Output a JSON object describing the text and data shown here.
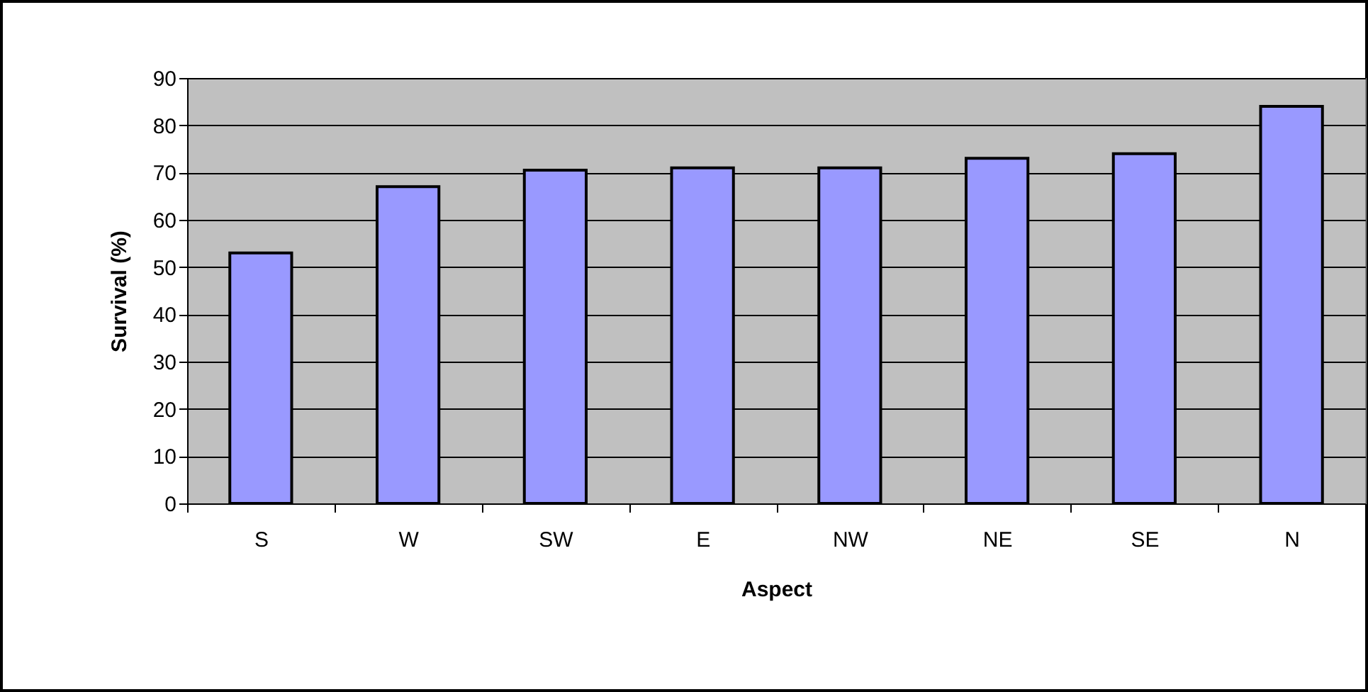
{
  "chart_data": {
    "type": "bar",
    "xlabel": "Aspect",
    "ylabel": "Survival   (%)",
    "categories": [
      "S",
      "W",
      "SW",
      "E",
      "NW",
      "NE",
      "SE",
      "N"
    ],
    "values": [
      53,
      67,
      70.5,
      71,
      71,
      73,
      74,
      84
    ],
    "color": "#9999ff",
    "ylim": [
      0,
      90
    ],
    "yticks": [
      0,
      10,
      20,
      30,
      40,
      50,
      60,
      70,
      80,
      90
    ],
    "grid": "y"
  }
}
